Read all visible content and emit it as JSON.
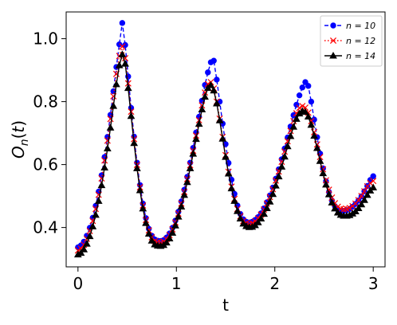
{
  "chart_data": {
    "type": "line",
    "xlabel": "t",
    "ylabel": "O_n(t)",
    "xlim": [
      -0.12,
      3.12
    ],
    "ylim": [
      0.275,
      1.085
    ],
    "xticks": [
      0,
      1,
      2,
      3
    ],
    "xtick_labels": [
      "0",
      "1",
      "2",
      "3"
    ],
    "yticks": [
      0.4,
      0.6,
      0.8,
      1.0
    ],
    "ytick_labels": [
      "0.4",
      "0.6",
      "0.8",
      "1.0"
    ],
    "grid": false,
    "legend_position": "top-right",
    "x": [
      0,
      0.03,
      0.06,
      0.09,
      0.12,
      0.15,
      0.18,
      0.21,
      0.24,
      0.27,
      0.3,
      0.33,
      0.36,
      0.39,
      0.42,
      0.45,
      0.48,
      0.51,
      0.54,
      0.57,
      0.6,
      0.63,
      0.66,
      0.69,
      0.72,
      0.75,
      0.78,
      0.81,
      0.84,
      0.87,
      0.9,
      0.93,
      0.96,
      0.99,
      1.02,
      1.05,
      1.08,
      1.11,
      1.14,
      1.17,
      1.2,
      1.23,
      1.26,
      1.29,
      1.32,
      1.35,
      1.38,
      1.41,
      1.44,
      1.47,
      1.5,
      1.53,
      1.56,
      1.59,
      1.62,
      1.65,
      1.68,
      1.71,
      1.74,
      1.77,
      1.8,
      1.83,
      1.86,
      1.89,
      1.92,
      1.95,
      1.98,
      2.01,
      2.04,
      2.07,
      2.1,
      2.13,
      2.16,
      2.19,
      2.22,
      2.25,
      2.28,
      2.31,
      2.34,
      2.37,
      2.4,
      2.43,
      2.46,
      2.49,
      2.52,
      2.55,
      2.58,
      2.61,
      2.64,
      2.67,
      2.7,
      2.73,
      2.76,
      2.79,
      2.82,
      2.85,
      2.88,
      2.91,
      2.94,
      2.97,
      3.0
    ],
    "series": [
      {
        "name": "n = 10",
        "color": "#0000ff",
        "line_style": "dashed",
        "marker": "circle",
        "values": [
          0.337,
          0.343,
          0.355,
          0.374,
          0.399,
          0.431,
          0.469,
          0.514,
          0.566,
          0.624,
          0.688,
          0.758,
          0.833,
          0.91,
          0.982,
          1.05,
          0.98,
          0.88,
          0.78,
          0.689,
          0.606,
          0.535,
          0.476,
          0.43,
          0.396,
          0.374,
          0.362,
          0.358,
          0.357,
          0.36,
          0.368,
          0.381,
          0.399,
          0.422,
          0.45,
          0.483,
          0.52,
          0.561,
          0.606,
          0.653,
          0.702,
          0.752,
          0.803,
          0.853,
          0.893,
          0.925,
          0.93,
          0.87,
          0.8,
          0.73,
          0.665,
          0.605,
          0.552,
          0.507,
          0.47,
          0.443,
          0.426,
          0.418,
          0.416,
          0.418,
          0.424,
          0.433,
          0.445,
          0.461,
          0.48,
          0.502,
          0.527,
          0.555,
          0.585,
          0.617,
          0.651,
          0.686,
          0.721,
          0.757,
          0.79,
          0.82,
          0.845,
          0.862,
          0.85,
          0.8,
          0.743,
          0.687,
          0.635,
          0.588,
          0.547,
          0.513,
          0.486,
          0.468,
          0.457,
          0.453,
          0.453,
          0.455,
          0.459,
          0.466,
          0.475,
          0.486,
          0.499,
          0.515,
          0.532,
          0.551,
          0.563
        ]
      },
      {
        "name": "n = 12",
        "color": "#ff0000",
        "line_style": "dotted",
        "marker": "x",
        "values": [
          0.327,
          0.333,
          0.345,
          0.364,
          0.389,
          0.421,
          0.459,
          0.504,
          0.556,
          0.613,
          0.676,
          0.745,
          0.817,
          0.888,
          0.945,
          0.975,
          0.938,
          0.858,
          0.768,
          0.681,
          0.599,
          0.528,
          0.47,
          0.424,
          0.391,
          0.369,
          0.357,
          0.353,
          0.352,
          0.355,
          0.363,
          0.376,
          0.394,
          0.416,
          0.444,
          0.476,
          0.513,
          0.554,
          0.598,
          0.644,
          0.692,
          0.741,
          0.788,
          0.829,
          0.856,
          0.862,
          0.842,
          0.8,
          0.746,
          0.688,
          0.63,
          0.577,
          0.53,
          0.491,
          0.459,
          0.436,
          0.421,
          0.414,
          0.412,
          0.414,
          0.42,
          0.429,
          0.441,
          0.457,
          0.476,
          0.497,
          0.522,
          0.549,
          0.578,
          0.609,
          0.641,
          0.674,
          0.707,
          0.738,
          0.763,
          0.78,
          0.786,
          0.781,
          0.765,
          0.738,
          0.703,
          0.664,
          0.624,
          0.585,
          0.55,
          0.52,
          0.495,
          0.477,
          0.466,
          0.46,
          0.458,
          0.459,
          0.462,
          0.468,
          0.476,
          0.487,
          0.5,
          0.515,
          0.531,
          0.541,
          0.548
        ]
      },
      {
        "name": "n = 14",
        "color": "#000000",
        "line_style": "solid",
        "marker": "triangle",
        "values": [
          0.314,
          0.319,
          0.33,
          0.348,
          0.372,
          0.403,
          0.44,
          0.484,
          0.534,
          0.59,
          0.651,
          0.717,
          0.786,
          0.855,
          0.915,
          0.95,
          0.92,
          0.843,
          0.754,
          0.668,
          0.588,
          0.518,
          0.46,
          0.414,
          0.38,
          0.358,
          0.346,
          0.342,
          0.341,
          0.344,
          0.352,
          0.365,
          0.383,
          0.406,
          0.434,
          0.466,
          0.503,
          0.544,
          0.588,
          0.634,
          0.681,
          0.729,
          0.775,
          0.815,
          0.843,
          0.852,
          0.835,
          0.794,
          0.74,
          0.682,
          0.624,
          0.571,
          0.524,
          0.484,
          0.452,
          0.428,
          0.412,
          0.404,
          0.401,
          0.402,
          0.407,
          0.416,
          0.428,
          0.443,
          0.461,
          0.482,
          0.506,
          0.533,
          0.562,
          0.593,
          0.625,
          0.658,
          0.69,
          0.72,
          0.745,
          0.762,
          0.77,
          0.767,
          0.752,
          0.726,
          0.691,
          0.652,
          0.611,
          0.572,
          0.536,
          0.505,
          0.479,
          0.46,
          0.447,
          0.44,
          0.437,
          0.437,
          0.439,
          0.444,
          0.451,
          0.461,
          0.473,
          0.487,
          0.503,
          0.517,
          0.527
        ]
      }
    ]
  }
}
